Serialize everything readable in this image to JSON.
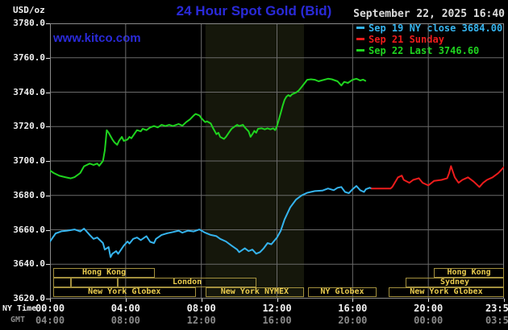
{
  "header": {
    "unit_label": "USD/oz",
    "title": "24 Hour Spot Gold (Bid)",
    "watermark": "www.kitco.com",
    "date_line": "September 22, 2025 16:40"
  },
  "colors": {
    "title_blue": "#2a2ad9",
    "grid": "#6b6b6b",
    "plot_border": "#8a8a8a",
    "nymex_band": "#15170b",
    "session_border": "#a3903e",
    "session_text": "#eacc4e",
    "axis_text": "#f2f2f2",
    "gmt_text": "#8a8a8a",
    "date_text": "#dcdcdc",
    "sep19_cyan": "#35b4ee",
    "sep21_red": "#ed1c1c",
    "sep22_green": "#1fd41f"
  },
  "legend": {
    "items": [
      {
        "name": "sep19",
        "color": "#35b4ee",
        "label": "Sep 19 NY close 3684.00"
      },
      {
        "name": "sep21",
        "color": "#ed1c1c",
        "label": "Sep 21 Sunday"
      },
      {
        "name": "sep22",
        "color": "#1fd41f",
        "label": "Sep 22 Last 3746.60"
      }
    ]
  },
  "axes": {
    "x_row1_label": "NY Time",
    "x_row2_label": "GMT",
    "x_hours": [
      0,
      4,
      8,
      12,
      16,
      20,
      23.983
    ],
    "ny_times": [
      "00:00",
      "04:00",
      "08:00",
      "12:00",
      "16:00",
      "20:00",
      "23:59"
    ],
    "gmt_times": [
      "04:00",
      "08:00",
      "12:00",
      "16:00",
      "20:00",
      "00:00",
      "03:59"
    ],
    "y_ticks": [
      "3780.0",
      "3760.0",
      "3740.0",
      "3720.0",
      "3700.0",
      "3680.0",
      "3660.0",
      "3640.0",
      "3620.0"
    ],
    "y_tick_values": [
      3780,
      3760,
      3740,
      3720,
      3700,
      3680,
      3660,
      3640,
      3620
    ]
  },
  "sessions": {
    "rows": [
      {
        "boxes": [
          {
            "label": "Hong Kong",
            "start": 0.17,
            "end": 5.55
          },
          {
            "label": "Hong Kong",
            "start": 20.3,
            "end": 24
          }
        ]
      },
      {
        "boxes": [
          {
            "label": "",
            "start": 0.17,
            "end": 1.1
          },
          {
            "label": "",
            "start": 1.1,
            "end": 3.6
          },
          {
            "label": "London",
            "start": 3.6,
            "end": 10.9
          },
          {
            "label": "Sydney",
            "start": 18.8,
            "end": 24
          }
        ]
      },
      {
        "boxes": [
          {
            "label": "New York Globex",
            "start": 0.17,
            "end": 7.7
          },
          {
            "label": "New York NYMEX",
            "start": 8.22,
            "end": 13.43
          },
          {
            "label": "NY Globex",
            "start": 13.65,
            "end": 17.25
          },
          {
            "label": "New York Globex",
            "start": 17.9,
            "end": 24
          }
        ]
      }
    ]
  },
  "chart_data": {
    "type": "line",
    "title": "24 Hour Spot Gold (Bid)",
    "xlabel": "NY Time (hours)",
    "ylabel": "USD/oz",
    "xlim": [
      0,
      24
    ],
    "ylim": [
      3620,
      3780
    ],
    "grid": true,
    "x_gridline_hours": [
      4,
      8,
      12,
      16,
      20
    ],
    "y_gridline_step": 20,
    "highlight_band_hours": [
      8.22,
      13.43
    ],
    "legend_position": "top-right",
    "series": [
      {
        "name": "Sep 19 NY close 3684.00",
        "color": "#35b4ee",
        "points": [
          [
            0,
            3653.2
          ],
          [
            0.3,
            3657.9
          ],
          [
            0.6,
            3659.1
          ],
          [
            0.9,
            3659.5
          ],
          [
            1.3,
            3660.2
          ],
          [
            1.6,
            3659
          ],
          [
            1.8,
            3660.7
          ],
          [
            2.1,
            3657
          ],
          [
            2.3,
            3654.7
          ],
          [
            2.5,
            3655.5
          ],
          [
            2.8,
            3652.3
          ],
          [
            2.9,
            3648.5
          ],
          [
            3.1,
            3650
          ],
          [
            3.2,
            3644.1
          ],
          [
            3.3,
            3646.1
          ],
          [
            3.5,
            3647.6
          ],
          [
            3.6,
            3646
          ],
          [
            3.9,
            3650.8
          ],
          [
            4.1,
            3653.2
          ],
          [
            4.2,
            3652
          ],
          [
            4.4,
            3654.7
          ],
          [
            4.6,
            3655.5
          ],
          [
            4.8,
            3654
          ],
          [
            5.1,
            3656.3
          ],
          [
            5.3,
            3653
          ],
          [
            5.5,
            3652.3
          ],
          [
            5.6,
            3654.7
          ],
          [
            5.9,
            3657
          ],
          [
            6.2,
            3658
          ],
          [
            6.5,
            3658.7
          ],
          [
            6.8,
            3659.5
          ],
          [
            7,
            3658.3
          ],
          [
            7.3,
            3659.5
          ],
          [
            7.6,
            3659
          ],
          [
            7.9,
            3660.2
          ],
          [
            8.2,
            3658.3
          ],
          [
            8.5,
            3657
          ],
          [
            8.8,
            3656.3
          ],
          [
            9,
            3654.7
          ],
          [
            9.3,
            3653.2
          ],
          [
            9.6,
            3650.8
          ],
          [
            9.9,
            3648.5
          ],
          [
            10,
            3647
          ],
          [
            10.3,
            3649.3
          ],
          [
            10.5,
            3647.6
          ],
          [
            10.7,
            3648.5
          ],
          [
            10.9,
            3646.1
          ],
          [
            11.1,
            3647
          ],
          [
            11.3,
            3649.3
          ],
          [
            11.5,
            3652.3
          ],
          [
            11.7,
            3651.6
          ],
          [
            12,
            3655.5
          ],
          [
            12.2,
            3659.5
          ],
          [
            12.4,
            3666
          ],
          [
            12.7,
            3673
          ],
          [
            13,
            3677.5
          ],
          [
            13.3,
            3680
          ],
          [
            13.6,
            3681.5
          ],
          [
            14,
            3682.5
          ],
          [
            14.4,
            3682.8
          ],
          [
            14.7,
            3684
          ],
          [
            15,
            3683
          ],
          [
            15.2,
            3684.4
          ],
          [
            15.4,
            3684.9
          ],
          [
            15.6,
            3682
          ],
          [
            15.8,
            3681.3
          ],
          [
            16,
            3683.6
          ],
          [
            16.2,
            3685.5
          ],
          [
            16.4,
            3683
          ],
          [
            16.6,
            3682
          ],
          [
            16.7,
            3683.6
          ],
          [
            16.9,
            3684.4
          ],
          [
            17,
            3684
          ]
        ]
      },
      {
        "name": "Sep 21 Sunday",
        "color": "#ed1c1c",
        "points": [
          [
            17,
            3684
          ],
          [
            18,
            3684
          ],
          [
            18.1,
            3685
          ],
          [
            18.4,
            3690.5
          ],
          [
            18.6,
            3691.5
          ],
          [
            18.7,
            3689
          ],
          [
            19,
            3687.3
          ],
          [
            19.2,
            3689
          ],
          [
            19.5,
            3690
          ],
          [
            19.7,
            3687.3
          ],
          [
            20,
            3685.8
          ],
          [
            20.3,
            3688.4
          ],
          [
            20.7,
            3689
          ],
          [
            21,
            3690
          ],
          [
            21.1,
            3693
          ],
          [
            21.2,
            3697
          ],
          [
            21.4,
            3690.5
          ],
          [
            21.6,
            3687.3
          ],
          [
            21.8,
            3689
          ],
          [
            22.1,
            3690.5
          ],
          [
            22.4,
            3688
          ],
          [
            22.7,
            3684.9
          ],
          [
            22.9,
            3687.3
          ],
          [
            23.1,
            3689
          ],
          [
            23.4,
            3690.5
          ],
          [
            23.7,
            3693
          ],
          [
            24,
            3696.5
          ]
        ]
      },
      {
        "name": "Sep 22 Last 3746.60",
        "color": "#1fd41f",
        "points": [
          [
            0,
            3694.5
          ],
          [
            0.2,
            3693
          ],
          [
            0.5,
            3691.4
          ],
          [
            0.8,
            3690.6
          ],
          [
            1.1,
            3689.9
          ],
          [
            1.3,
            3690.6
          ],
          [
            1.6,
            3693
          ],
          [
            1.8,
            3696.9
          ],
          [
            2.1,
            3698.5
          ],
          [
            2.3,
            3697.7
          ],
          [
            2.5,
            3698.5
          ],
          [
            2.6,
            3697.2
          ],
          [
            2.8,
            3700
          ],
          [
            2.9,
            3706.2
          ],
          [
            3,
            3717.9
          ],
          [
            3.1,
            3716.4
          ],
          [
            3.3,
            3712.5
          ],
          [
            3.4,
            3710.9
          ],
          [
            3.55,
            3709.4
          ],
          [
            3.65,
            3711.7
          ],
          [
            3.8,
            3714
          ],
          [
            3.9,
            3711.7
          ],
          [
            4.1,
            3712.5
          ],
          [
            4.2,
            3714
          ],
          [
            4.3,
            3713.2
          ],
          [
            4.5,
            3716.4
          ],
          [
            4.6,
            3717.9
          ],
          [
            4.8,
            3717.2
          ],
          [
            4.9,
            3718.7
          ],
          [
            5.1,
            3717.9
          ],
          [
            5.3,
            3719.5
          ],
          [
            5.5,
            3720.3
          ],
          [
            5.7,
            3719.5
          ],
          [
            5.9,
            3721
          ],
          [
            6.1,
            3720.3
          ],
          [
            6.3,
            3721
          ],
          [
            6.5,
            3720.3
          ],
          [
            6.8,
            3721.5
          ],
          [
            7,
            3720.5
          ],
          [
            7.2,
            3722.6
          ],
          [
            7.4,
            3724.2
          ],
          [
            7.6,
            3726.5
          ],
          [
            7.7,
            3727.3
          ],
          [
            7.9,
            3726.5
          ],
          [
            8,
            3724.9
          ],
          [
            8.2,
            3722.6
          ],
          [
            8.3,
            3723
          ],
          [
            8.5,
            3721.8
          ],
          [
            8.6,
            3719.5
          ],
          [
            8.8,
            3715.6
          ],
          [
            8.9,
            3716.4
          ],
          [
            9,
            3714
          ],
          [
            9.2,
            3712.8
          ],
          [
            9.3,
            3714
          ],
          [
            9.5,
            3717.2
          ],
          [
            9.6,
            3718.7
          ],
          [
            9.8,
            3720.3
          ],
          [
            9.9,
            3721
          ],
          [
            10,
            3720.3
          ],
          [
            10.2,
            3721
          ],
          [
            10.3,
            3719.5
          ],
          [
            10.5,
            3717.2
          ],
          [
            10.6,
            3714
          ],
          [
            10.7,
            3715.6
          ],
          [
            10.8,
            3717.5
          ],
          [
            10.9,
            3716.4
          ],
          [
            11,
            3718.7
          ],
          [
            11.2,
            3719
          ],
          [
            11.35,
            3718.4
          ],
          [
            11.5,
            3719
          ],
          [
            11.65,
            3718.4
          ],
          [
            11.8,
            3719
          ],
          [
            11.9,
            3717.9
          ],
          [
            12,
            3720.3
          ],
          [
            12.1,
            3724
          ],
          [
            12.2,
            3728
          ],
          [
            12.3,
            3732
          ],
          [
            12.4,
            3735.5
          ],
          [
            12.5,
            3737.4
          ],
          [
            12.6,
            3738.3
          ],
          [
            12.7,
            3737.6
          ],
          [
            12.8,
            3738.8
          ],
          [
            13,
            3739.7
          ],
          [
            13.15,
            3741
          ],
          [
            13.3,
            3743
          ],
          [
            13.45,
            3745.1
          ],
          [
            13.6,
            3747.2
          ],
          [
            13.8,
            3747.5
          ],
          [
            14,
            3747.2
          ],
          [
            14.2,
            3746.3
          ],
          [
            14.35,
            3746.8
          ],
          [
            14.7,
            3747.8
          ],
          [
            14.9,
            3747.5
          ],
          [
            15.2,
            3746.3
          ],
          [
            15.4,
            3743.9
          ],
          [
            15.55,
            3746
          ],
          [
            15.75,
            3745.4
          ],
          [
            16,
            3747.2
          ],
          [
            16.2,
            3747.8
          ],
          [
            16.4,
            3746.8
          ],
          [
            16.55,
            3747.3
          ],
          [
            16.67,
            3746.6
          ]
        ]
      }
    ]
  }
}
